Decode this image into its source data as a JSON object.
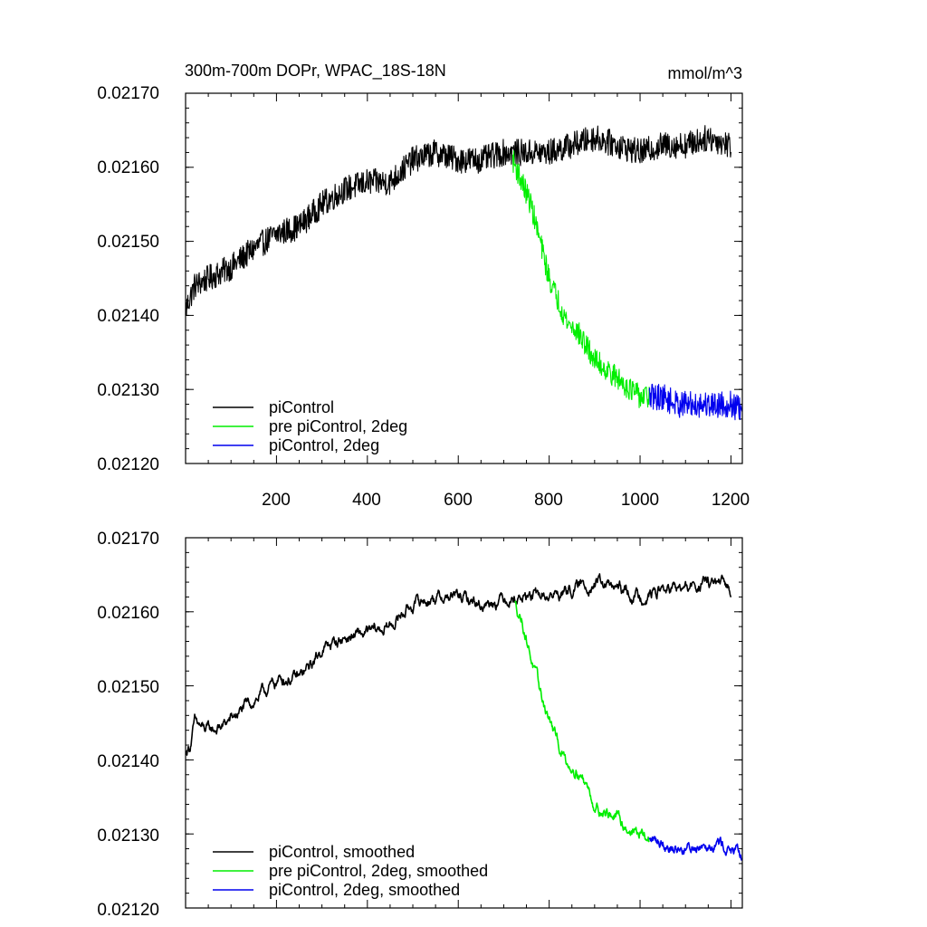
{
  "chart_data": [
    {
      "type": "line",
      "title": "300m-700m DOPr, WPAC_18S-18N",
      "units": "mmol/m^3",
      "xlabel": "",
      "ylabel": "",
      "xlim": [
        0,
        1225
      ],
      "ylim": [
        0.0212,
        0.0217
      ],
      "xticks": [
        200,
        400,
        600,
        800,
        1000,
        1200
      ],
      "xtick_labels": [
        "200",
        "400",
        "600",
        "800",
        "1000",
        "1200"
      ],
      "show_xtick_labels": true,
      "yticks": [
        0.0212,
        0.0213,
        0.0214,
        0.0215,
        0.0216,
        0.0217
      ],
      "ytick_labels": [
        "0.02120",
        "0.02130",
        "0.02140",
        "0.02150",
        "0.02160",
        "0.02170"
      ],
      "legend_position": "bottom-left",
      "grid": false,
      "series": [
        {
          "name": "piControl",
          "color": "#000000",
          "x": [
            1,
            20,
            50,
            100,
            150,
            200,
            250,
            300,
            350,
            400,
            450,
            500,
            550,
            600,
            650,
            700,
            750,
            800,
            850,
            900,
            950,
            1000,
            1050,
            1100,
            1150,
            1200
          ],
          "trend": [
            0.02141,
            0.02144,
            0.02145,
            0.021465,
            0.02149,
            0.02151,
            0.02152,
            0.02155,
            0.02157,
            0.02158,
            0.02158,
            0.02161,
            0.02162,
            0.02161,
            0.02161,
            0.02162,
            0.02162,
            0.02162,
            0.02163,
            0.02164,
            0.02163,
            0.02162,
            0.02163,
            0.02163,
            0.02164,
            0.02163
          ],
          "noise": 1.8e-05
        },
        {
          "name": "pre piControl, 2deg",
          "color": "#00ee00",
          "x": [
            720,
            740,
            760,
            780,
            800,
            820,
            840,
            860,
            880,
            900,
            920,
            940,
            960,
            980,
            1000,
            1020
          ],
          "trend": [
            0.02161,
            0.02158,
            0.02155,
            0.0215,
            0.02145,
            0.02142,
            0.02139,
            0.02138,
            0.02136,
            0.02134,
            0.02133,
            0.02132,
            0.02131,
            0.0213,
            0.02129,
            0.02129
          ],
          "noise": 1.6e-05
        },
        {
          "name": "piControl, 2deg",
          "color": "#0000ee",
          "x": [
            1020,
            1050,
            1080,
            1110,
            1140,
            1170,
            1200,
            1225
          ],
          "trend": [
            0.02129,
            0.02129,
            0.02128,
            0.02128,
            0.02128,
            0.02128,
            0.02128,
            0.02127
          ],
          "noise": 1.8e-05
        }
      ]
    },
    {
      "type": "line",
      "title": "",
      "units": "",
      "xlabel": "",
      "ylabel": "",
      "xlim": [
        0,
        1225
      ],
      "ylim": [
        0.0212,
        0.0217
      ],
      "xticks": [
        200,
        400,
        600,
        800,
        1000,
        1200
      ],
      "xtick_labels": [],
      "show_xtick_labels": false,
      "yticks": [
        0.0212,
        0.0213,
        0.0214,
        0.0215,
        0.0216,
        0.0217
      ],
      "ytick_labels": [
        "0.02120",
        "0.02130",
        "0.02140",
        "0.02150",
        "0.02160",
        "0.02170"
      ],
      "legend_position": "bottom-left",
      "grid": false,
      "series": [
        {
          "name": "piControl, smoothed",
          "color": "#000000",
          "x": [
            1,
            10,
            20,
            40,
            60,
            80,
            100,
            150,
            200,
            210,
            250,
            280,
            300,
            350,
            400,
            450,
            480,
            500,
            550,
            600,
            650,
            700,
            750,
            800,
            850,
            900,
            950,
            1000,
            1050,
            1100,
            1150,
            1200
          ],
          "trend": [
            0.02141,
            0.02142,
            0.02145,
            0.02144,
            0.02144,
            0.021445,
            0.021455,
            0.02148,
            0.021505,
            0.02151,
            0.02151,
            0.02153,
            0.02155,
            0.021565,
            0.02157,
            0.02158,
            0.0216,
            0.02161,
            0.02162,
            0.02162,
            0.02161,
            0.02162,
            0.02162,
            0.02162,
            0.02163,
            0.02164,
            0.02163,
            0.02162,
            0.02163,
            0.02163,
            0.02164,
            0.02163
          ],
          "noise": 5e-06
        },
        {
          "name": "pre piControl, 2deg, smoothed",
          "color": "#00ee00",
          "x": [
            725,
            740,
            760,
            780,
            800,
            820,
            840,
            860,
            880,
            900,
            920,
            940,
            960,
            980,
            1000,
            1020
          ],
          "trend": [
            0.02161,
            0.02159,
            0.02154,
            0.02149,
            0.021455,
            0.02142,
            0.021395,
            0.02139,
            0.02137,
            0.02134,
            0.02133,
            0.021325,
            0.021315,
            0.021305,
            0.0213,
            0.02129
          ],
          "noise": 5e-06
        },
        {
          "name": "piControl, 2deg, smoothed",
          "color": "#0000ee",
          "x": [
            1020,
            1050,
            1080,
            1110,
            1140,
            1170,
            1200,
            1225
          ],
          "trend": [
            0.02129,
            0.02129,
            0.02128,
            0.02128,
            0.02129,
            0.02129,
            0.02128,
            0.021265
          ],
          "noise": 5e-06
        }
      ]
    }
  ]
}
